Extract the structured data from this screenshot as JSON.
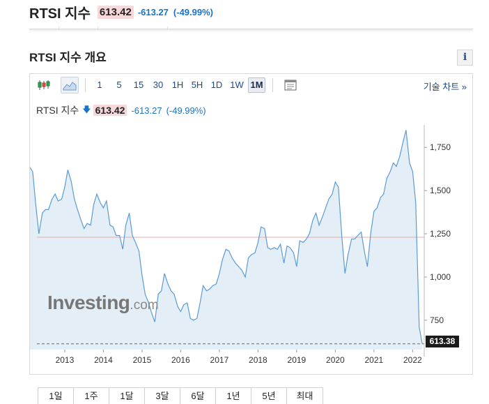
{
  "header": {
    "title": "RTSI 지수",
    "price": "613.42",
    "change": "-613.27",
    "change_pct": "(-49.99%)"
  },
  "section": {
    "title": "RTSI 지수 개요",
    "info_label": "i"
  },
  "toolbar": {
    "chart_type_icons": [
      "candlestick-icon",
      "area-chart-icon"
    ],
    "periods": [
      "1",
      "5",
      "15",
      "30",
      "1H",
      "5H",
      "1D",
      "1W",
      "1M"
    ],
    "selected_period": "1M",
    "settings_icon": "chart-settings-icon",
    "advanced_label": "기술 차트 »"
  },
  "legend": {
    "name": "RTSI 지수",
    "arrow": "🡇",
    "price": "613.42",
    "change": "-613.27",
    "change_pct": "(-49.99%)"
  },
  "watermark": {
    "main": "Investing",
    "tld": ".com"
  },
  "colors": {
    "line": "#5b9bd5",
    "area": "#e4eef6",
    "negative": "#1a73c8",
    "price_bg": "#f8d7da",
    "reference_line": "#e8a8a8"
  },
  "chart_data": {
    "type": "area",
    "title": "",
    "xlabel": "",
    "ylabel": "",
    "x_range": [
      2012.1,
      2022.3
    ],
    "ylim": [
      580,
      1880
    ],
    "y_ticks": [
      750,
      1000,
      1250,
      1500,
      1750
    ],
    "y_tick_labels": [
      "750",
      "1,000",
      "1,250",
      "1,500",
      "1,750"
    ],
    "x_ticks": [
      2013,
      2014,
      2015,
      2016,
      2017,
      2018,
      2019,
      2020,
      2021,
      2022
    ],
    "x_tick_labels": [
      "2013",
      "2014",
      "2015",
      "2016",
      "2017",
      "2018",
      "2019",
      "2020",
      "2021",
      "2022"
    ],
    "reference_line": 1230,
    "last_value_line": 613.38,
    "last_value_label": "613.38",
    "grid": false,
    "points": [
      [
        2012.08,
        1640
      ],
      [
        2012.17,
        1610
      ],
      [
        2012.25,
        1420
      ],
      [
        2012.33,
        1250
      ],
      [
        2012.42,
        1370
      ],
      [
        2012.5,
        1390
      ],
      [
        2012.58,
        1390
      ],
      [
        2012.67,
        1450
      ],
      [
        2012.75,
        1480
      ],
      [
        2012.83,
        1440
      ],
      [
        2012.92,
        1450
      ],
      [
        2013.0,
        1520
      ],
      [
        2013.08,
        1620
      ],
      [
        2013.17,
        1550
      ],
      [
        2013.25,
        1450
      ],
      [
        2013.33,
        1390
      ],
      [
        2013.42,
        1330
      ],
      [
        2013.5,
        1280
      ],
      [
        2013.58,
        1310
      ],
      [
        2013.67,
        1300
      ],
      [
        2013.75,
        1420
      ],
      [
        2013.83,
        1480
      ],
      [
        2013.92,
        1430
      ],
      [
        2014.0,
        1400
      ],
      [
        2014.08,
        1440
      ],
      [
        2014.17,
        1300
      ],
      [
        2014.25,
        1290
      ],
      [
        2014.33,
        1240
      ],
      [
        2014.42,
        1240
      ],
      [
        2014.5,
        1160
      ],
      [
        2014.58,
        1300
      ],
      [
        2014.67,
        1370
      ],
      [
        2014.75,
        1240
      ],
      [
        2014.83,
        1200
      ],
      [
        2014.92,
        1150
      ],
      [
        2015.0,
        1010
      ],
      [
        2015.08,
        900
      ],
      [
        2015.17,
        850
      ],
      [
        2015.25,
        790
      ],
      [
        2015.33,
        740
      ],
      [
        2015.42,
        900
      ],
      [
        2015.5,
        920
      ],
      [
        2015.58,
        1020
      ],
      [
        2015.67,
        960
      ],
      [
        2015.75,
        920
      ],
      [
        2015.83,
        900
      ],
      [
        2015.92,
        830
      ],
      [
        2016.0,
        800
      ],
      [
        2016.08,
        840
      ],
      [
        2016.17,
        850
      ],
      [
        2016.25,
        760
      ],
      [
        2016.33,
        750
      ],
      [
        2016.42,
        760
      ],
      [
        2016.5,
        850
      ],
      [
        2016.58,
        950
      ],
      [
        2016.67,
        920
      ],
      [
        2016.75,
        930
      ],
      [
        2016.83,
        950
      ],
      [
        2016.92,
        960
      ],
      [
        2017.0,
        1020
      ],
      [
        2017.08,
        1100
      ],
      [
        2017.17,
        1160
      ],
      [
        2017.25,
        1150
      ],
      [
        2017.33,
        1110
      ],
      [
        2017.42,
        1080
      ],
      [
        2017.5,
        1060
      ],
      [
        2017.58,
        1040
      ],
      [
        2017.67,
        1000
      ],
      [
        2017.75,
        1110
      ],
      [
        2017.83,
        1130
      ],
      [
        2017.92,
        1140
      ],
      [
        2018.0,
        1200
      ],
      [
        2018.08,
        1290
      ],
      [
        2018.17,
        1280
      ],
      [
        2018.25,
        1170
      ],
      [
        2018.33,
        1160
      ],
      [
        2018.42,
        1170
      ],
      [
        2018.5,
        1160
      ],
      [
        2018.58,
        1190
      ],
      [
        2018.67,
        1080
      ],
      [
        2018.75,
        1180
      ],
      [
        2018.83,
        1170
      ],
      [
        2018.92,
        1140
      ],
      [
        2019.0,
        1060
      ],
      [
        2019.08,
        1210
      ],
      [
        2019.17,
        1200
      ],
      [
        2019.25,
        1220
      ],
      [
        2019.33,
        1250
      ],
      [
        2019.42,
        1330
      ],
      [
        2019.5,
        1370
      ],
      [
        2019.58,
        1300
      ],
      [
        2019.67,
        1350
      ],
      [
        2019.75,
        1400
      ],
      [
        2019.83,
        1450
      ],
      [
        2019.92,
        1480
      ],
      [
        2020.0,
        1550
      ],
      [
        2020.08,
        1520
      ],
      [
        2020.17,
        1230
      ],
      [
        2020.25,
        1020
      ],
      [
        2020.33,
        1130
      ],
      [
        2020.42,
        1220
      ],
      [
        2020.5,
        1220
      ],
      [
        2020.58,
        1240
      ],
      [
        2020.67,
        1260
      ],
      [
        2020.75,
        1150
      ],
      [
        2020.83,
        1060
      ],
      [
        2020.92,
        1260
      ],
      [
        2021.0,
        1380
      ],
      [
        2021.08,
        1400
      ],
      [
        2021.17,
        1460
      ],
      [
        2021.25,
        1480
      ],
      [
        2021.33,
        1570
      ],
      [
        2021.42,
        1610
      ],
      [
        2021.5,
        1660
      ],
      [
        2021.58,
        1640
      ],
      [
        2021.67,
        1700
      ],
      [
        2021.75,
        1780
      ],
      [
        2021.83,
        1850
      ],
      [
        2021.92,
        1660
      ],
      [
        2022.0,
        1610
      ],
      [
        2022.08,
        1430
      ],
      [
        2022.17,
        710
      ],
      [
        2022.25,
        613
      ]
    ]
  },
  "range_buttons": [
    "1일",
    "1주",
    "1달",
    "3달",
    "6달",
    "1년",
    "5년",
    "최대"
  ]
}
